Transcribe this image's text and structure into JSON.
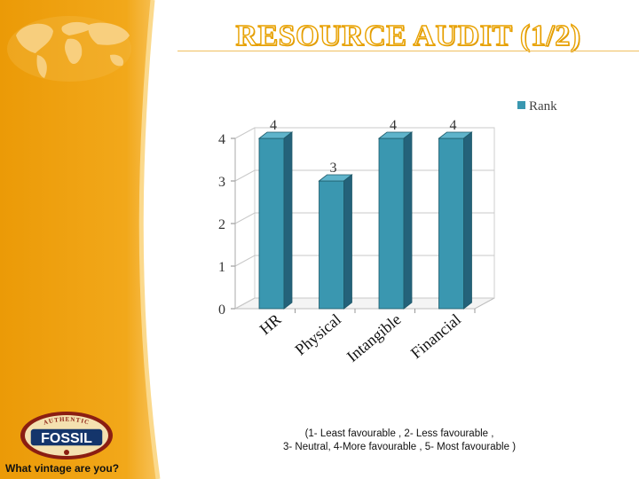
{
  "slide": {
    "title": "RESOURCE AUDIT (1/2)",
    "scale_note_line1": "(1- Least favourable , 2- Less favourable ,",
    "scale_note_line2": "3- Neutral, 4-More favourable , 5- Most favourable )",
    "tagline": "What vintage are you?",
    "logo_text": "FOSSIL",
    "logo_ring_text": "AUTHENTIC",
    "colors": {
      "sidebar": "#EFA00F",
      "title_outline": "#E8A100",
      "bar": "#3A97B0"
    }
  },
  "chart_data": {
    "type": "bar",
    "categories": [
      "HR",
      "Physical",
      "Intangible",
      "Financial"
    ],
    "series": [
      {
        "name": "Rank",
        "values": [
          4,
          3,
          4,
          4
        ]
      }
    ],
    "ylim": [
      0,
      4
    ],
    "yticks": [
      0,
      1,
      2,
      3,
      4
    ],
    "grid": true,
    "legend": "top-right",
    "data_labels": true,
    "style": "3d-column"
  }
}
